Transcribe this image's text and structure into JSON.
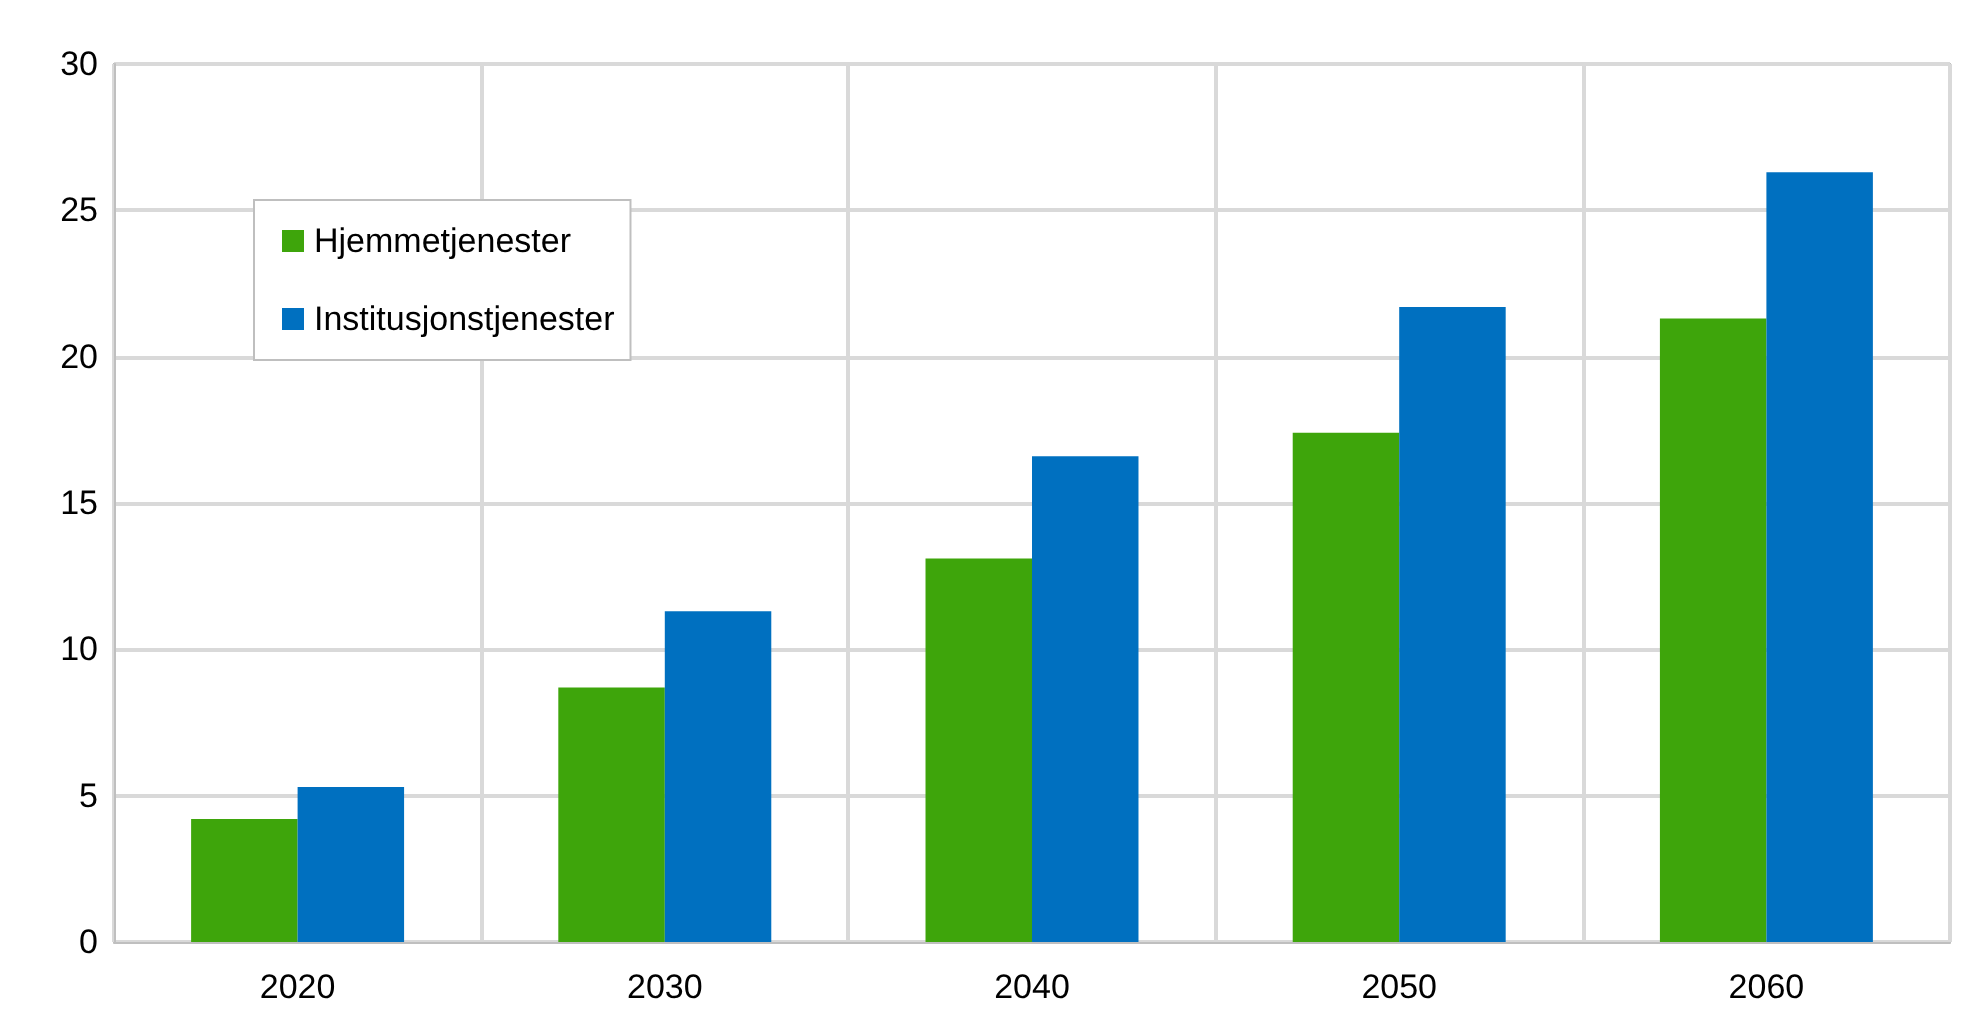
{
  "chart_data": {
    "type": "bar",
    "categories": [
      "2020",
      "2030",
      "2040",
      "2050",
      "2060"
    ],
    "series": [
      {
        "name": "Hjemmetjenester",
        "color": "#3ea50b",
        "values": [
          4.2,
          8.7,
          13.1,
          17.4,
          21.3
        ]
      },
      {
        "name": "Institusjonstjenester",
        "color": "#0070c0",
        "values": [
          5.3,
          11.3,
          16.6,
          21.7,
          26.3
        ]
      }
    ],
    "ylim": [
      0,
      30
    ],
    "yticks": [
      0,
      5,
      10,
      15,
      20,
      25,
      30
    ],
    "grid": true,
    "legend": "top left"
  }
}
